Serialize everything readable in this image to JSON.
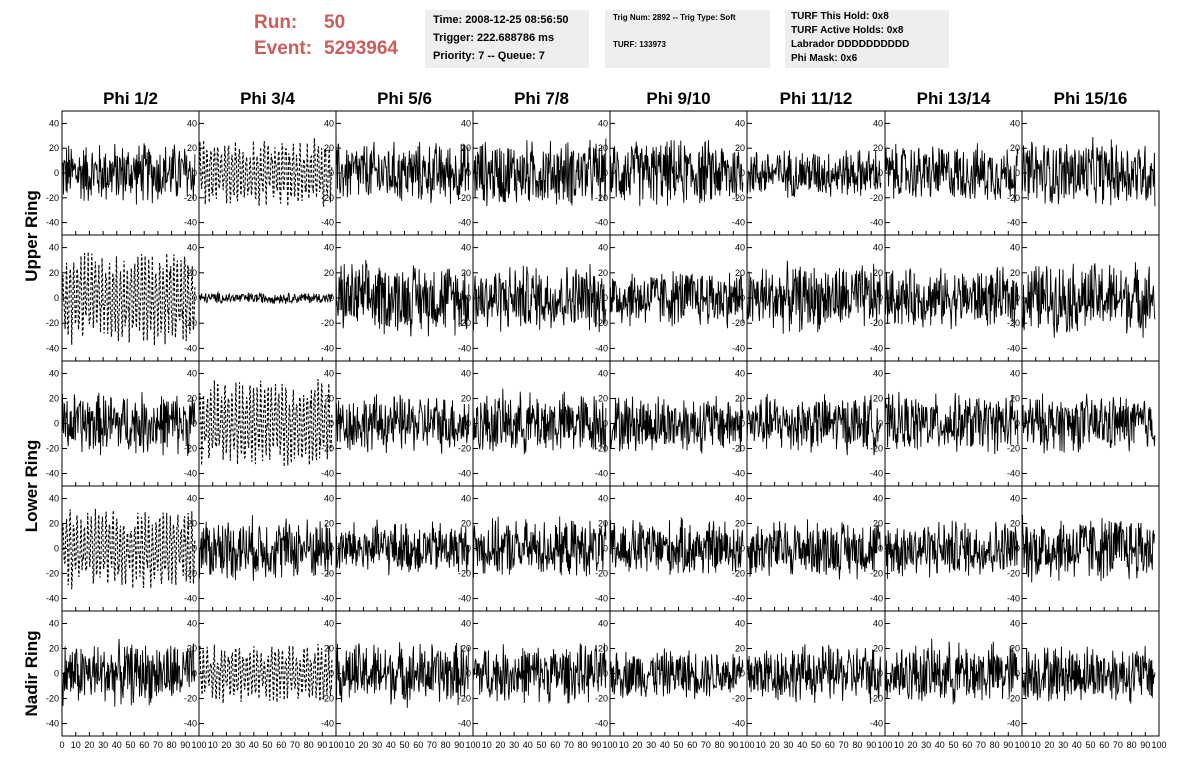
{
  "header": {
    "run_key": "Run:",
    "run_value": "50",
    "event_key": "Event:",
    "event_value": "5293964"
  },
  "time_box": {
    "line1": "Time: 2008-12-25 08:56:50",
    "line2": "Trigger: 222.688786 ms",
    "line3": "Priority: 7 -- Queue: 7"
  },
  "trig_box": {
    "line1": "Trig Num: 2892 -- Trig Type: Soft",
    "line2": "TURF: 133973"
  },
  "turf_box": {
    "line1": "TURF This Hold: 0x8",
    "line2": "TURF Active Holds: 0x8",
    "line3": "Labrador DDDDDDDDDD",
    "line4": "Phi Mask: 0x6"
  },
  "colors": {
    "header_text": "#cd5c5c",
    "info_box_bg": "#eeeeee",
    "trace": "#000000"
  },
  "chart_data": {
    "type": "line",
    "columns": [
      "Phi 1/2",
      "Phi 3/4",
      "Phi 5/6",
      "Phi 7/8",
      "Phi 9/10",
      "Phi 11/12",
      "Phi 13/14",
      "Phi 15/16"
    ],
    "ring_labels": [
      "Upper Ring",
      "Lower Ring",
      "Nadir Ring"
    ],
    "rows": 5,
    "ring_groups": [
      {
        "label": "Upper Ring",
        "rows": [
          0,
          1
        ]
      },
      {
        "label": "Lower Ring",
        "rows": [
          2,
          3
        ]
      },
      {
        "label": "Nadir Ring",
        "rows": [
          4
        ]
      }
    ],
    "xlim": [
      0,
      100
    ],
    "ylim": [
      -50,
      50
    ],
    "y_ticks": [
      -40,
      -20,
      0,
      20,
      40
    ],
    "x_ticks": [
      0,
      10,
      20,
      30,
      40,
      50,
      60,
      70,
      80,
      90,
      100
    ],
    "n_samples": 260,
    "dashed_panels": [
      [
        0,
        1
      ],
      [
        1,
        0
      ],
      [
        2,
        1
      ],
      [
        3,
        0
      ],
      [
        4,
        1
      ]
    ],
    "quiet_panels": [
      [
        1,
        1
      ]
    ],
    "panel_amplitude": [
      [
        28,
        24,
        28,
        30,
        30,
        22,
        26,
        30
      ],
      [
        32,
        5,
        32,
        30,
        26,
        30,
        26,
        32
      ],
      [
        28,
        30,
        26,
        28,
        26,
        26,
        26,
        26
      ],
      [
        28,
        28,
        24,
        26,
        26,
        26,
        26,
        30
      ],
      [
        28,
        20,
        28,
        26,
        22,
        26,
        28,
        26
      ]
    ]
  }
}
